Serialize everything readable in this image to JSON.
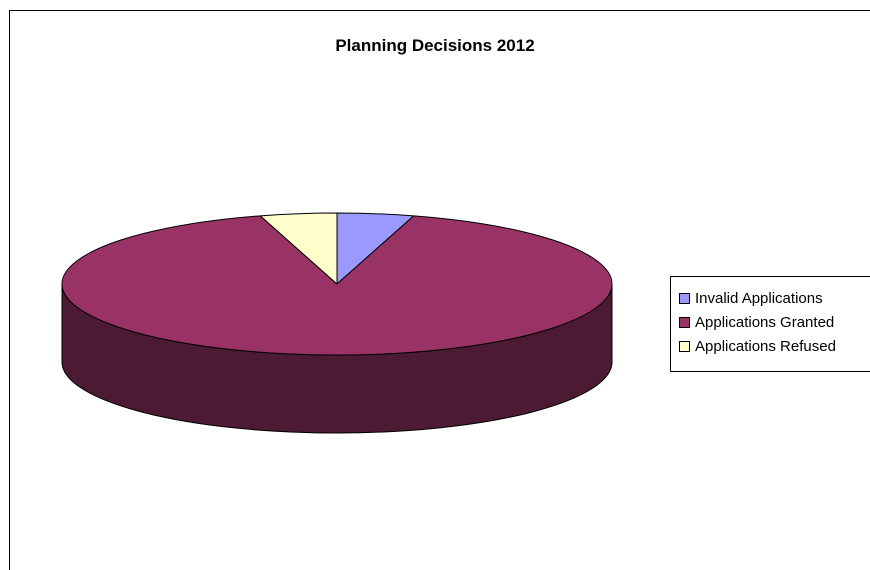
{
  "chart_data": {
    "type": "pie",
    "title": "Planning Decisions 2012",
    "three_d": true,
    "legend_position": "right",
    "categories": [
      "Invalid Applications",
      "Applications Granted",
      "Applications Refused"
    ],
    "values": [
      4.5,
      91,
      4.5
    ],
    "colors": [
      "#9999ff",
      "#993366",
      "#ffffcc"
    ],
    "side_color": "#4d1a33"
  }
}
